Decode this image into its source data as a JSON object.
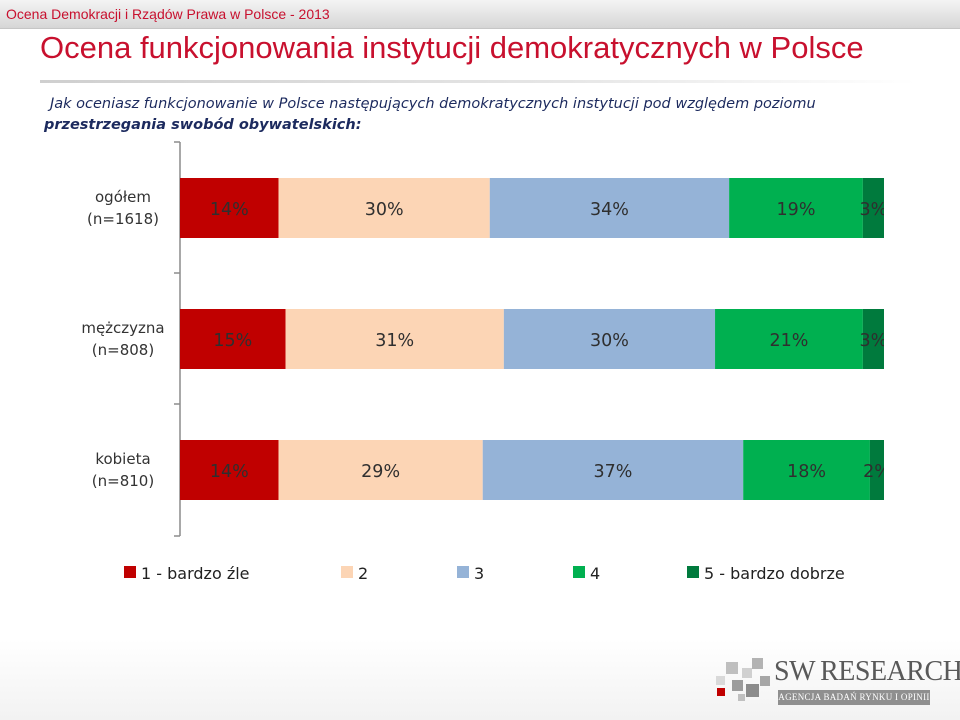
{
  "header": {
    "topbar_title": "Ocena Demokracji i Rządów Prawa w Polsce - 2013",
    "main_title": "Ocena funkcjonowania instytucji demokratycznych w Polsce",
    "question_line1": "Jak oceniasz funkcjonowanie w Polsce następujących demokratycznych instytucji pod względem poziomu",
    "question_line2": "przestrzegania swobód obywatelskich:"
  },
  "chart_data": {
    "type": "bar",
    "orientation": "horizontal",
    "stacked": true,
    "percent": true,
    "categories": [
      [
        "ogółem",
        "(n=1618)"
      ],
      [
        "mężczyzna",
        "(n=808)"
      ],
      [
        "kobieta",
        "(n=810)"
      ]
    ],
    "series": [
      {
        "name": "1 - bardzo źle",
        "color": "#c00000",
        "values": [
          14,
          15,
          14
        ],
        "labels": [
          "14%",
          "15%",
          "14%"
        ]
      },
      {
        "name": "2",
        "color": "#fcd5b5",
        "values": [
          30,
          31,
          29
        ],
        "labels": [
          "30%",
          "31%",
          "29%"
        ]
      },
      {
        "name": "3",
        "color": "#95b3d7",
        "values": [
          34,
          30,
          37
        ],
        "labels": [
          "34%",
          "30%",
          "37%"
        ]
      },
      {
        "name": "4",
        "color": "#00b050",
        "values": [
          19,
          21,
          18
        ],
        "labels": [
          "19%",
          "21%",
          "18%"
        ]
      },
      {
        "name": "5 - bardzo dobrze",
        "color": "#007a3d",
        "values": [
          3,
          3,
          2
        ],
        "labels": [
          "3%",
          "3%",
          "2%"
        ]
      }
    ],
    "xlim": [
      0,
      100
    ],
    "grid": false,
    "legend": "bottom"
  },
  "logo": {
    "main_big1": "SW",
    "main_big2": "R",
    "main_small": "ESEARCH",
    "subtitle": "AGENCJA BADAŃ RYNKU I OPINII"
  }
}
